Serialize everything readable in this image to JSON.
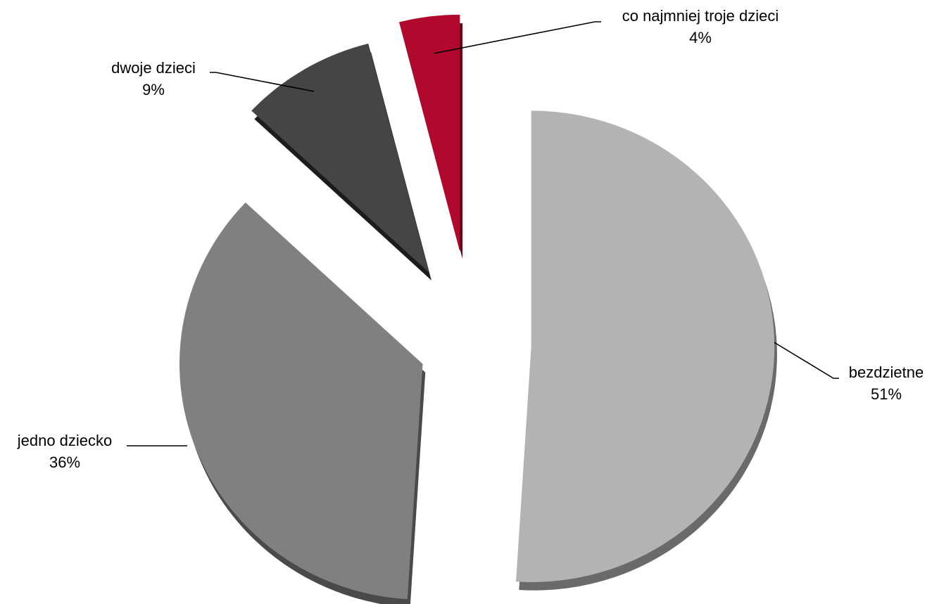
{
  "chart_data": {
    "type": "pie",
    "title": "",
    "slices": [
      {
        "label": "bezdzietne",
        "value": 51,
        "value_label": "51%",
        "color": "#b3b3b3",
        "side_color": "#6a6a6a"
      },
      {
        "label": "jedno dziecko",
        "value": 36,
        "value_label": "36%",
        "color": "#808080",
        "side_color": "#4a4a4a"
      },
      {
        "label": "dwoje dzieci",
        "value": 9,
        "value_label": "9%",
        "color": "#454545",
        "side_color": "#1c1c1c"
      },
      {
        "label": "co najmniej troje dzieci",
        "value": 4,
        "value_label": "4%",
        "color": "#b0092d",
        "side_color": "#5e0414"
      }
    ],
    "exploded": true,
    "legend": "none"
  }
}
